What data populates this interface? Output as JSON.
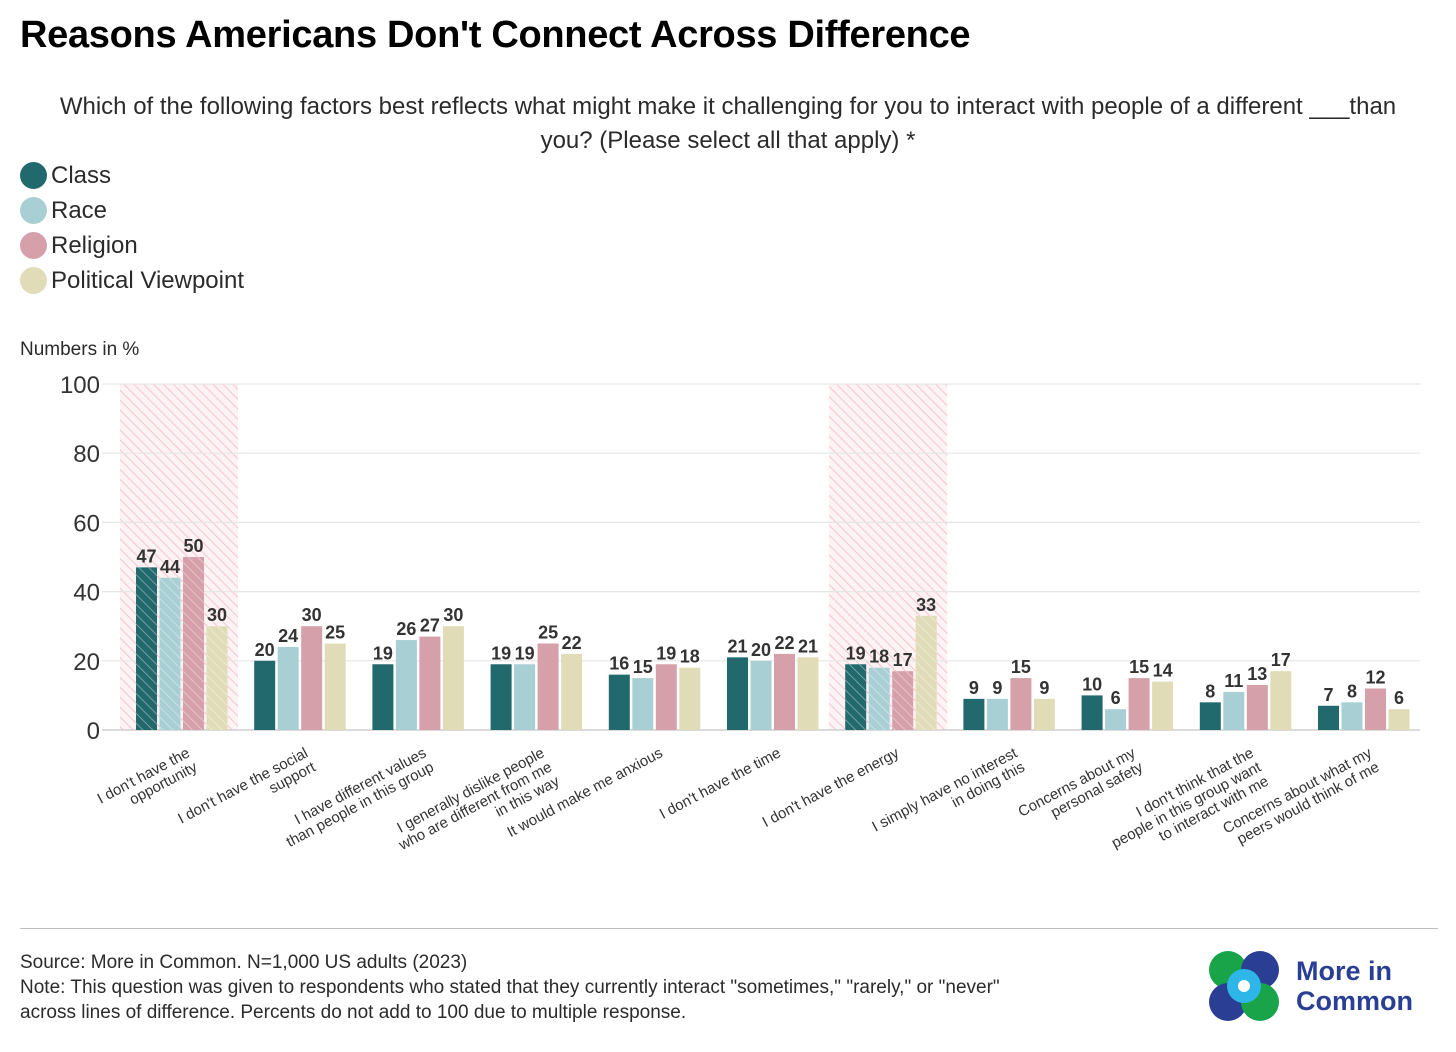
{
  "title": "Reasons Americans Don't Connect Across Difference",
  "subtitle": "Which of the following factors best reflects what might make it challenging for you to interact with people of a different ___than you? (Please select all that apply) *",
  "unit_note": "Numbers in %",
  "legend": [
    {
      "label": "Class",
      "color": "#22696d"
    },
    {
      "label": "Race",
      "color": "#a8d0d4"
    },
    {
      "label": "Religion",
      "color": "#d6a0ab"
    },
    {
      "label": "Political Viewpoint",
      "color": "#e0dcb8"
    }
  ],
  "source": {
    "line1": "Source: More in Common. N=1,000 US adults (2023)",
    "line2": "Note: This question was given to respondents who stated that they currently interact \"sometimes,\" \"rarely,\" or \"never\"",
    "line3": "across lines of difference. Percents do not add to 100 due to multiple response."
  },
  "logo": {
    "line1": "More in",
    "line2": "Common"
  },
  "chart_data": {
    "type": "bar",
    "categories": [
      [
        "I don't have the",
        "opportunity"
      ],
      [
        "I don't have the social",
        "support"
      ],
      [
        "I have different values",
        "than people in this group"
      ],
      [
        "I generally dislike people",
        "who are different from me",
        "in this way"
      ],
      [
        "It would make me anxious"
      ],
      [
        "I don't have the time"
      ],
      [
        "I don't have the energy"
      ],
      [
        "I simply have no interest",
        "in doing this"
      ],
      [
        "Concerns about my",
        "personal safety"
      ],
      [
        "I don't think that the",
        "people in this group want",
        "to interact with me"
      ],
      [
        "Concerns about what my",
        "peers would think of me"
      ]
    ],
    "series": [
      {
        "name": "Class",
        "values": [
          47,
          20,
          19,
          19,
          16,
          21,
          19,
          9,
          10,
          8,
          7
        ]
      },
      {
        "name": "Race",
        "values": [
          44,
          24,
          26,
          19,
          15,
          20,
          18,
          9,
          6,
          11,
          8
        ]
      },
      {
        "name": "Religion",
        "values": [
          50,
          30,
          27,
          25,
          19,
          22,
          17,
          15,
          15,
          13,
          12
        ]
      },
      {
        "name": "Political Viewpoint",
        "values": [
          30,
          25,
          30,
          22,
          18,
          21,
          33,
          9,
          14,
          17,
          6
        ]
      }
    ],
    "highlighted_categories": [
      0,
      6
    ],
    "ylim": [
      0,
      100
    ],
    "yticks": [
      0,
      20,
      40,
      60,
      80,
      100
    ],
    "grid": true,
    "legend_position": "top-left"
  }
}
